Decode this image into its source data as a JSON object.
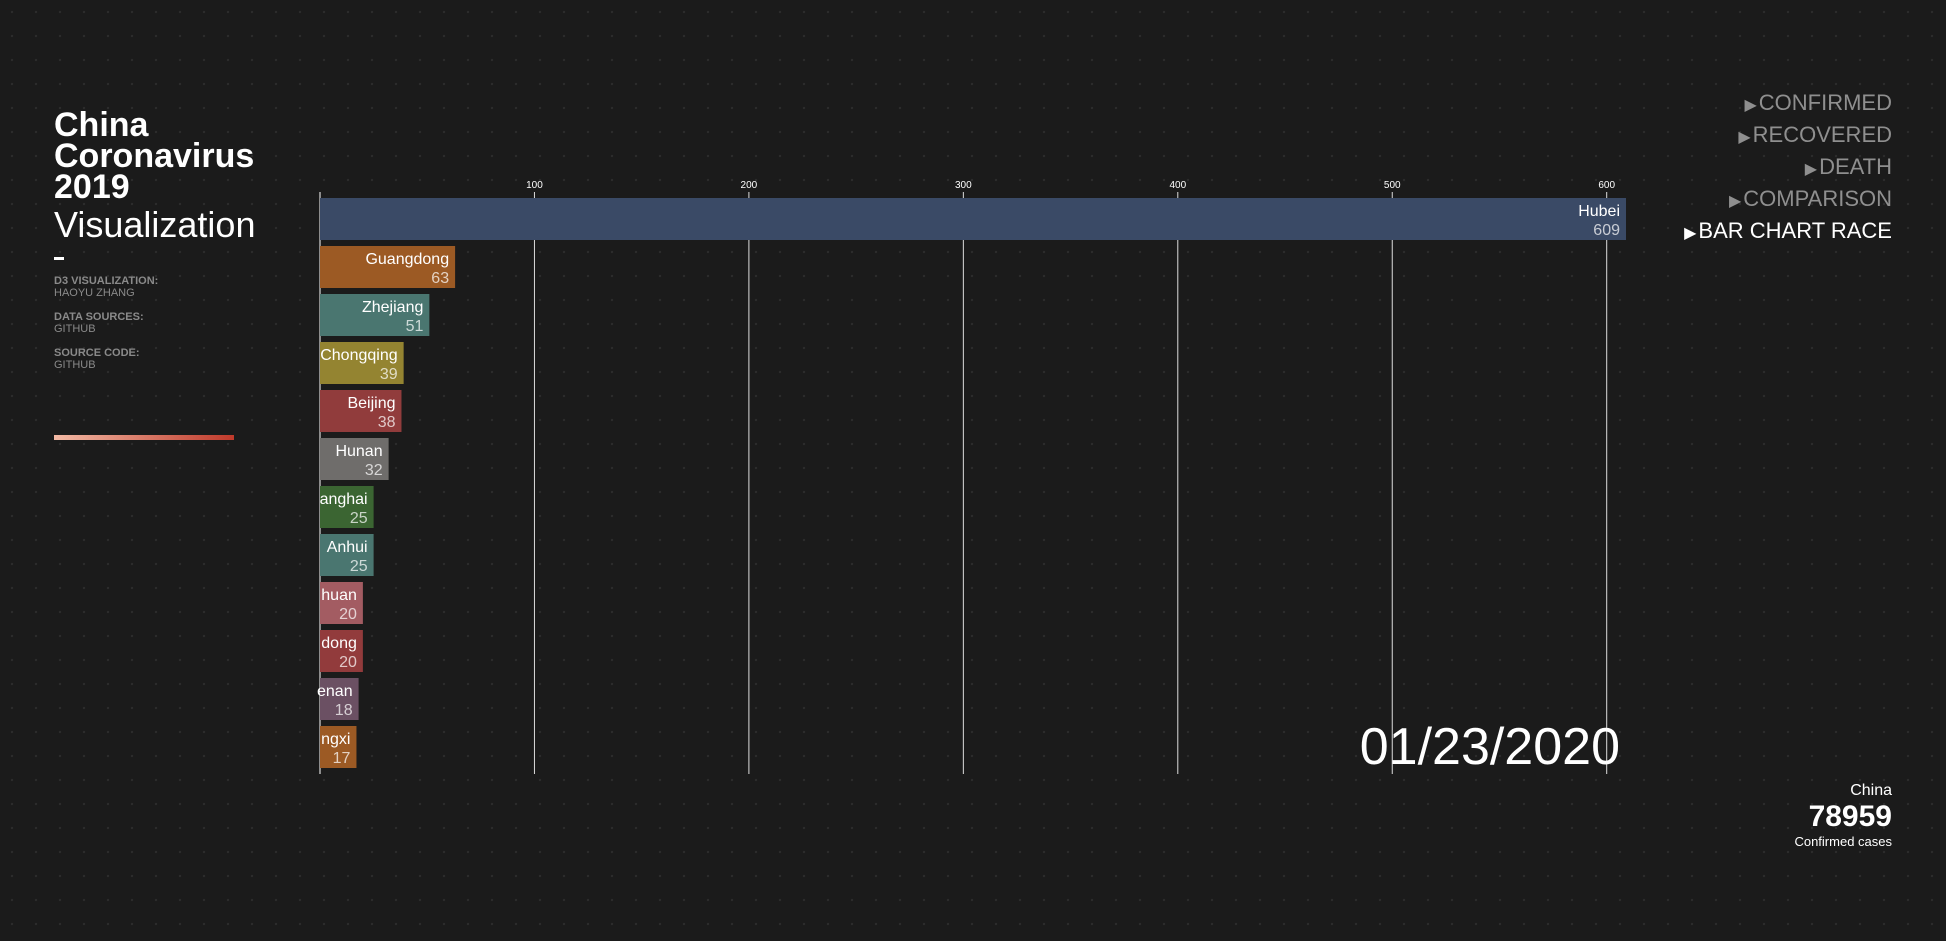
{
  "header": {
    "title_lines": [
      "China",
      "Coronavirus",
      "2019"
    ],
    "subtitle": "Visualization",
    "credits": [
      {
        "label": "D3 VISUALIZATION:",
        "value": "HAOYU ZHANG"
      },
      {
        "label": "DATA SOURCES:",
        "value": "GITHUB"
      },
      {
        "label": "SOURCE CODE:",
        "value": "GITHUB"
      }
    ]
  },
  "nav": {
    "items": [
      {
        "label": "CONFIRMED",
        "active": false
      },
      {
        "label": "RECOVERED",
        "active": false
      },
      {
        "label": "DEATH",
        "active": false
      },
      {
        "label": "COMPARISON",
        "active": false
      },
      {
        "label": "BAR CHART RACE",
        "active": true
      }
    ]
  },
  "summary": {
    "region": "China",
    "total": "78959",
    "caption": "Confirmed cases"
  },
  "colors": {
    "background": "#1b1b1b",
    "nav_inactive": "#8f8f8f",
    "legend_gradient": [
      "#f2b9a4",
      "#c03a2b"
    ]
  },
  "chart_data": {
    "type": "bar",
    "orientation": "horizontal",
    "date": "01/23/2020",
    "xlim": [
      0,
      609
    ],
    "ticks": [
      100,
      200,
      300,
      400,
      500,
      600
    ],
    "grid": true,
    "bars": [
      {
        "name": "Hubei",
        "value": 609,
        "label": "Hubei",
        "color": "#3a4a66"
      },
      {
        "name": "Guangdong",
        "value": 63,
        "label": "Guangdong",
        "color": "#9c5a24"
      },
      {
        "name": "Zhejiang",
        "value": 51,
        "label": "Zhejiang",
        "color": "#4a7670"
      },
      {
        "name": "Chongqing",
        "value": 39,
        "label": "Chongqing",
        "color": "#948431"
      },
      {
        "name": "Beijing",
        "value": 38,
        "label": "Beijing",
        "color": "#913c3c"
      },
      {
        "name": "Hunan",
        "value": 32,
        "label": "Hunan",
        "color": "#6f6d6b"
      },
      {
        "name": "Shanghai",
        "value": 25,
        "label": "anghai",
        "color": "#3b6532"
      },
      {
        "name": "Anhui",
        "value": 25,
        "label": "Anhui",
        "color": "#4a7670"
      },
      {
        "name": "Sichuan",
        "value": 20,
        "label": "huan",
        "color": "#a35c62"
      },
      {
        "name": "Shandong",
        "value": 20,
        "label": "dong",
        "color": "#923b3c"
      },
      {
        "name": "Henan",
        "value": 18,
        "label": "enan",
        "color": "#6b5063"
      },
      {
        "name": "Jiangxi",
        "value": 17,
        "label": "ngxi",
        "color": "#9c5a24"
      }
    ]
  }
}
